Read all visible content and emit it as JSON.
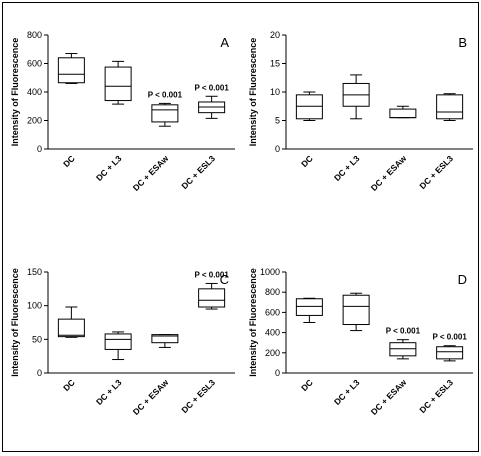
{
  "figure": {
    "panels": [
      "A",
      "B",
      "C",
      "D"
    ]
  },
  "chart_data": [
    {
      "type": "box",
      "panel_label": "A",
      "ylabel": "Intensity of Fluorescence",
      "ylim": [
        0,
        800
      ],
      "yticks": [
        0,
        200,
        400,
        600,
        800
      ],
      "categories": [
        "DC",
        "DC + L3",
        "DC + ESAw",
        "DC + ESL3"
      ],
      "boxes": [
        {
          "min": 460,
          "q1": 465,
          "median": 525,
          "q3": 640,
          "max": 670,
          "annotation": ""
        },
        {
          "min": 315,
          "q1": 340,
          "median": 440,
          "q3": 575,
          "max": 615,
          "annotation": ""
        },
        {
          "min": 160,
          "q1": 190,
          "median": 275,
          "q3": 310,
          "max": 320,
          "annotation": "P < 0.001"
        },
        {
          "min": 215,
          "q1": 255,
          "median": 295,
          "q3": 330,
          "max": 370,
          "annotation": "P < 0.001"
        }
      ]
    },
    {
      "type": "box",
      "panel_label": "B",
      "ylabel": "Intensity of Fluorescence",
      "ylim": [
        0,
        20
      ],
      "yticks": [
        0,
        5,
        10,
        15,
        20
      ],
      "categories": [
        "DC",
        "DC + L3",
        "DC + ESAw",
        "DC + ESL3"
      ],
      "boxes": [
        {
          "min": 5,
          "q1": 5.3,
          "median": 7.5,
          "q3": 9.5,
          "max": 10,
          "annotation": ""
        },
        {
          "min": 5.3,
          "q1": 7.5,
          "median": 9.5,
          "q3": 11.5,
          "max": 13,
          "annotation": ""
        },
        {
          "min": 5.5,
          "q1": 5.5,
          "median": 5.5,
          "q3": 7,
          "max": 7.5,
          "annotation": ""
        },
        {
          "min": 5,
          "q1": 5.3,
          "median": 6.5,
          "q3": 9.5,
          "max": 9.7,
          "annotation": ""
        }
      ]
    },
    {
      "type": "box",
      "panel_label": "C",
      "ylabel": "Intensity of Fluorescence",
      "ylim": [
        0,
        150
      ],
      "yticks": [
        0,
        50,
        100,
        150
      ],
      "categories": [
        "DC",
        "DC + L3",
        "DC + ESAw",
        "DC + ESL3"
      ],
      "boxes": [
        {
          "min": 53,
          "q1": 54,
          "median": 56,
          "q3": 80,
          "max": 98,
          "annotation": ""
        },
        {
          "min": 20,
          "q1": 35,
          "median": 50,
          "q3": 58,
          "max": 61,
          "annotation": ""
        },
        {
          "min": 38,
          "q1": 45,
          "median": 55,
          "q3": 57,
          "max": 57,
          "annotation": ""
        },
        {
          "min": 95,
          "q1": 98,
          "median": 108,
          "q3": 125,
          "max": 133,
          "annotation": "P < 0.001"
        }
      ]
    },
    {
      "type": "box",
      "panel_label": "D",
      "ylabel": "Intensity of Fluorescence",
      "ylim": [
        0,
        1000
      ],
      "yticks": [
        0,
        200,
        400,
        600,
        800,
        1000
      ],
      "categories": [
        "DC",
        "DC + L3",
        "DC + ESAw",
        "DC + ESL3"
      ],
      "boxes": [
        {
          "min": 500,
          "q1": 570,
          "median": 660,
          "q3": 735,
          "max": 740,
          "annotation": ""
        },
        {
          "min": 420,
          "q1": 480,
          "median": 660,
          "q3": 770,
          "max": 790,
          "annotation": ""
        },
        {
          "min": 140,
          "q1": 170,
          "median": 240,
          "q3": 300,
          "max": 330,
          "annotation": "P < 0.001"
        },
        {
          "min": 120,
          "q1": 140,
          "median": 210,
          "q3": 260,
          "max": 270,
          "annotation": "P < 0.001"
        }
      ]
    }
  ]
}
